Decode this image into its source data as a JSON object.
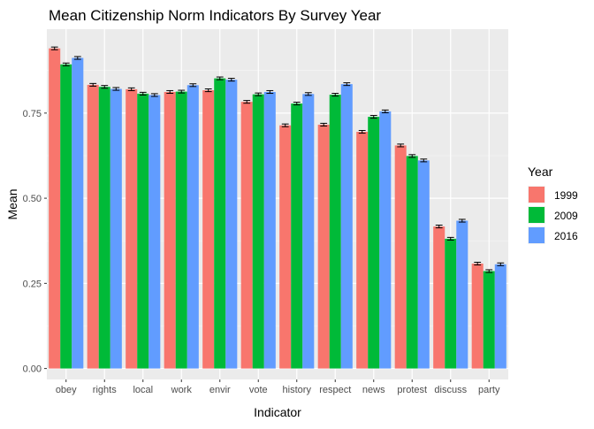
{
  "chart_data": {
    "type": "bar",
    "title": "Mean Citizenship Norm Indicators By Survey Year",
    "xlabel": "Indicator",
    "ylabel": "Mean",
    "ylim": [
      -0.023,
      0.965
    ],
    "yticks": [
      0.0,
      0.25,
      0.5,
      0.75
    ],
    "ytick_labels": [
      "0.00",
      "0.25",
      "0.50",
      "0.75"
    ],
    "grid": true,
    "error_bars": true,
    "legend": {
      "title": "Year",
      "position": "right"
    },
    "categories": [
      "obey",
      "rights",
      "local",
      "work",
      "envir",
      "vote",
      "history",
      "respect",
      "news",
      "protest",
      "discuss",
      "party"
    ],
    "series": [
      {
        "name": "1999",
        "color": "#F8766D",
        "values": [
          0.94,
          0.833,
          0.82,
          0.812,
          0.817,
          0.783,
          0.714,
          0.716,
          0.695,
          0.655,
          0.417,
          0.308
        ]
      },
      {
        "name": "2009",
        "color": "#00BA38",
        "values": [
          0.893,
          0.827,
          0.807,
          0.813,
          0.852,
          0.805,
          0.778,
          0.804,
          0.739,
          0.624,
          0.381,
          0.286
        ]
      },
      {
        "name": "2016",
        "color": "#619CFF",
        "values": [
          0.912,
          0.821,
          0.803,
          0.832,
          0.848,
          0.812,
          0.806,
          0.835,
          0.755,
          0.611,
          0.434,
          0.306
        ]
      }
    ],
    "error_margin": 0.004
  }
}
